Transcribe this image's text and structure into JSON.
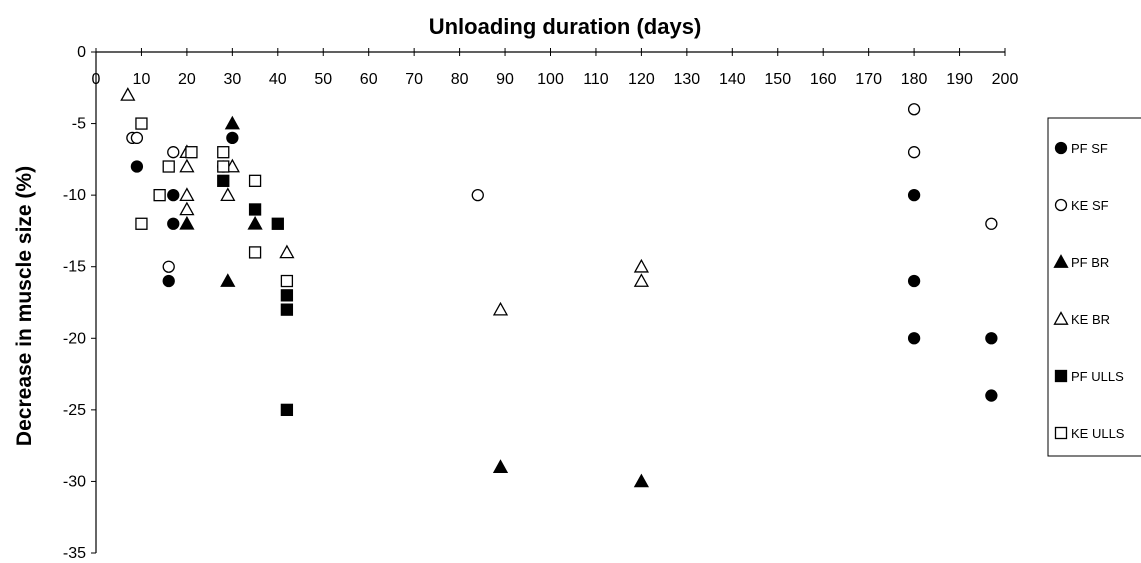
{
  "chart_data": {
    "type": "scatter",
    "title": "Unloading duration (days)",
    "xlabel": "",
    "ylabel": "Decrease in muscle size (%)",
    "xlim": [
      0,
      200
    ],
    "ylim": [
      -35,
      0
    ],
    "x_ticks": [
      0,
      10,
      20,
      30,
      40,
      50,
      60,
      70,
      80,
      90,
      100,
      110,
      120,
      130,
      140,
      150,
      160,
      170,
      180,
      190,
      200
    ],
    "y_ticks": [
      0,
      -5,
      -10,
      -15,
      -20,
      -25,
      -30,
      -35
    ],
    "x_axis_position": "top",
    "grid": false,
    "legend_position": "right",
    "series": [
      {
        "name": "PF SF",
        "marker": "circle",
        "filled": true,
        "points": [
          [
            9,
            -8
          ],
          [
            17,
            -10
          ],
          [
            17,
            -12
          ],
          [
            16,
            -16
          ],
          [
            30,
            -6
          ],
          [
            180,
            -10
          ],
          [
            180,
            -16
          ],
          [
            180,
            -20
          ],
          [
            197,
            -20
          ],
          [
            197,
            -24
          ]
        ]
      },
      {
        "name": "KE SF",
        "marker": "circle",
        "filled": false,
        "points": [
          [
            8,
            -6
          ],
          [
            9,
            -6
          ],
          [
            17,
            -7
          ],
          [
            16,
            -15
          ],
          [
            28,
            -8
          ],
          [
            84,
            -10
          ],
          [
            180,
            -4
          ],
          [
            180,
            -7
          ],
          [
            197,
            -12
          ]
        ]
      },
      {
        "name": "PF BR",
        "marker": "triangle",
        "filled": true,
        "points": [
          [
            30,
            -5
          ],
          [
            20,
            -12
          ],
          [
            35,
            -12
          ],
          [
            29,
            -16
          ],
          [
            89,
            -29
          ],
          [
            120,
            -30
          ]
        ]
      },
      {
        "name": "KE BR",
        "marker": "triangle",
        "filled": false,
        "points": [
          [
            7,
            -3
          ],
          [
            20,
            -7
          ],
          [
            20,
            -8
          ],
          [
            20,
            -10
          ],
          [
            20,
            -11
          ],
          [
            29,
            -10
          ],
          [
            30,
            -8
          ],
          [
            42,
            -14
          ],
          [
            89,
            -18
          ],
          [
            120,
            -15
          ],
          [
            120,
            -16
          ]
        ]
      },
      {
        "name": "PF ULLS",
        "marker": "square",
        "filled": true,
        "points": [
          [
            28,
            -9
          ],
          [
            35,
            -11
          ],
          [
            40,
            -12
          ],
          [
            42,
            -17
          ],
          [
            42,
            -18
          ],
          [
            42,
            -25
          ]
        ]
      },
      {
        "name": "KE ULLS",
        "marker": "square",
        "filled": false,
        "points": [
          [
            10,
            -5
          ],
          [
            10,
            -12
          ],
          [
            14,
            -10
          ],
          [
            16,
            -8
          ],
          [
            21,
            -7
          ],
          [
            28,
            -7
          ],
          [
            28,
            -8
          ],
          [
            35,
            -9
          ],
          [
            35,
            -14
          ],
          [
            42,
            -16
          ]
        ]
      }
    ]
  }
}
